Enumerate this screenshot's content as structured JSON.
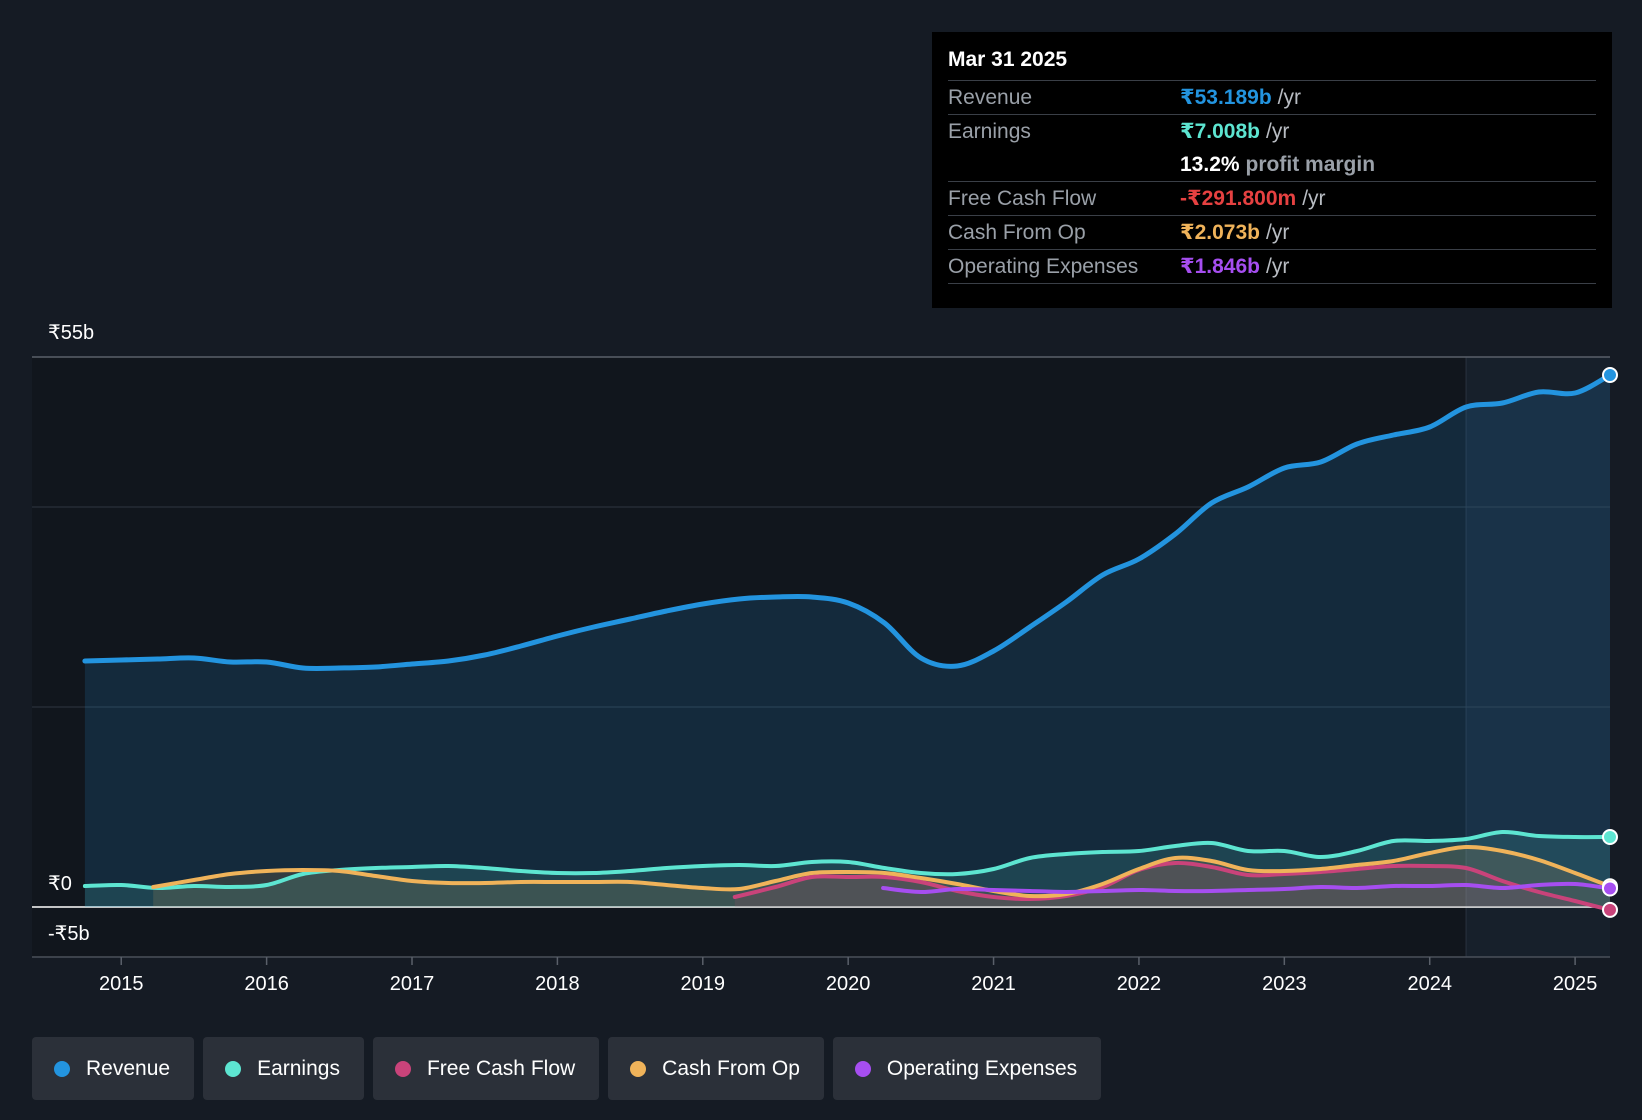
{
  "tooltip": {
    "date": "Mar 31 2025",
    "rows": [
      {
        "label": "Revenue",
        "value": "₹53.189b",
        "suffix": "/yr",
        "color": "#2394df"
      },
      {
        "label": "Earnings",
        "value": "₹7.008b",
        "suffix": "/yr",
        "color": "#5de5d1"
      },
      {
        "label": "",
        "value": "13.2%",
        "suffix": "profit margin",
        "color": "#ffffff"
      },
      {
        "label": "Free Cash Flow",
        "value": "-₹291.800m",
        "suffix": "/yr",
        "color": "#e64141"
      },
      {
        "label": "Cash From Op",
        "value": "₹2.073b",
        "suffix": "/yr",
        "color": "#f0b35a"
      },
      {
        "label": "Operating Expenses",
        "value": "₹1.846b",
        "suffix": "/yr",
        "color": "#a64ef0"
      }
    ]
  },
  "legend": [
    {
      "label": "Revenue",
      "color": "#2394df"
    },
    {
      "label": "Earnings",
      "color": "#5de5d1"
    },
    {
      "label": "Free Cash Flow",
      "color": "#c9437a"
    },
    {
      "label": "Cash From Op",
      "color": "#f0b35a"
    },
    {
      "label": "Operating Expenses",
      "color": "#a64ef0"
    }
  ],
  "chart_data": {
    "type": "line",
    "title": "",
    "xlabel": "",
    "ylabel": "",
    "ylim": [
      -5,
      55
    ],
    "xlim": [
      2014.4,
      2025.24
    ],
    "y_tick_labels": {
      "top": "₹55b",
      "zero": "₹0",
      "bottom": "-₹5b"
    },
    "x_ticks": [
      2015,
      2016,
      2017,
      2018,
      2019,
      2020,
      2021,
      2022,
      2023,
      2024,
      2025
    ],
    "x_tick_labels": [
      "2015",
      "2016",
      "2017",
      "2018",
      "2019",
      "2020",
      "2021",
      "2022",
      "2023",
      "2024",
      "2025"
    ],
    "forecast_start": 2024.25,
    "series": [
      {
        "name": "Revenue",
        "color": "#2394df",
        "area": true,
        "points": [
          [
            2014.75,
            24.6
          ],
          [
            2015,
            24.7
          ],
          [
            2015.25,
            24.8
          ],
          [
            2015.5,
            24.9
          ],
          [
            2015.75,
            24.5
          ],
          [
            2016,
            24.5
          ],
          [
            2016.25,
            23.9
          ],
          [
            2016.5,
            23.9
          ],
          [
            2016.75,
            24.0
          ],
          [
            2017,
            24.3
          ],
          [
            2017.25,
            24.6
          ],
          [
            2017.5,
            25.2
          ],
          [
            2017.75,
            26.1
          ],
          [
            2018,
            27.1
          ],
          [
            2018.25,
            28.0
          ],
          [
            2018.5,
            28.8
          ],
          [
            2018.75,
            29.6
          ],
          [
            2019,
            30.3
          ],
          [
            2019.25,
            30.8
          ],
          [
            2019.5,
            31.0
          ],
          [
            2019.75,
            31.0
          ],
          [
            2020,
            30.4
          ],
          [
            2020.25,
            28.4
          ],
          [
            2020.5,
            24.9
          ],
          [
            2020.75,
            24.1
          ],
          [
            2021,
            25.6
          ],
          [
            2021.25,
            28.0
          ],
          [
            2021.5,
            30.5
          ],
          [
            2021.75,
            33.2
          ],
          [
            2022,
            34.8
          ],
          [
            2022.25,
            37.3
          ],
          [
            2022.5,
            40.4
          ],
          [
            2022.75,
            42.0
          ],
          [
            2023,
            43.9
          ],
          [
            2023.25,
            44.5
          ],
          [
            2023.5,
            46.3
          ],
          [
            2023.75,
            47.2
          ],
          [
            2024,
            48.0
          ],
          [
            2024.25,
            50.0
          ],
          [
            2024.5,
            50.4
          ],
          [
            2024.75,
            51.5
          ],
          [
            2025,
            51.4
          ],
          [
            2025.24,
            53.2
          ]
        ]
      },
      {
        "name": "Earnings",
        "color": "#5de5d1",
        "area": true,
        "points": [
          [
            2014.75,
            2.1
          ],
          [
            2015,
            2.2
          ],
          [
            2015.25,
            1.9
          ],
          [
            2015.5,
            2.1
          ],
          [
            2015.75,
            2.0
          ],
          [
            2016,
            2.2
          ],
          [
            2016.25,
            3.3
          ],
          [
            2016.5,
            3.7
          ],
          [
            2016.75,
            3.9
          ],
          [
            2017,
            4.0
          ],
          [
            2017.25,
            4.1
          ],
          [
            2017.5,
            3.9
          ],
          [
            2017.75,
            3.6
          ],
          [
            2018,
            3.4
          ],
          [
            2018.25,
            3.4
          ],
          [
            2018.5,
            3.6
          ],
          [
            2018.75,
            3.9
          ],
          [
            2019,
            4.1
          ],
          [
            2019.25,
            4.2
          ],
          [
            2019.5,
            4.1
          ],
          [
            2019.75,
            4.5
          ],
          [
            2020,
            4.5
          ],
          [
            2020.25,
            3.9
          ],
          [
            2020.5,
            3.4
          ],
          [
            2020.75,
            3.3
          ],
          [
            2021,
            3.8
          ],
          [
            2021.25,
            4.9
          ],
          [
            2021.5,
            5.3
          ],
          [
            2021.75,
            5.5
          ],
          [
            2022,
            5.6
          ],
          [
            2022.25,
            6.1
          ],
          [
            2022.5,
            6.4
          ],
          [
            2022.75,
            5.6
          ],
          [
            2023,
            5.6
          ],
          [
            2023.25,
            5.0
          ],
          [
            2023.5,
            5.6
          ],
          [
            2023.75,
            6.6
          ],
          [
            2024,
            6.6
          ],
          [
            2024.25,
            6.8
          ],
          [
            2024.5,
            7.5
          ],
          [
            2024.75,
            7.1
          ],
          [
            2025,
            7.0
          ],
          [
            2025.24,
            7.0
          ]
        ]
      },
      {
        "name": "Free Cash Flow",
        "color": "#c9437a",
        "area": true,
        "points": [
          [
            2019.22,
            1.0
          ],
          [
            2019.5,
            2.0
          ],
          [
            2019.75,
            3.0
          ],
          [
            2020,
            3.0
          ],
          [
            2020.25,
            3.0
          ],
          [
            2020.5,
            2.5
          ],
          [
            2020.75,
            1.6
          ],
          [
            2021,
            1.0
          ],
          [
            2021.25,
            0.8
          ],
          [
            2021.5,
            1.1
          ],
          [
            2021.75,
            2.0
          ],
          [
            2022,
            3.7
          ],
          [
            2022.25,
            4.4
          ],
          [
            2022.5,
            4.0
          ],
          [
            2022.75,
            3.2
          ],
          [
            2023,
            3.3
          ],
          [
            2023.25,
            3.5
          ],
          [
            2023.5,
            3.8
          ],
          [
            2023.75,
            4.1
          ],
          [
            2024,
            4.1
          ],
          [
            2024.25,
            3.9
          ],
          [
            2024.5,
            2.6
          ],
          [
            2024.75,
            1.5
          ],
          [
            2025,
            0.6
          ],
          [
            2025.24,
            -0.29
          ]
        ]
      },
      {
        "name": "Cash From Op",
        "color": "#f0b35a",
        "area": true,
        "points": [
          [
            2015.22,
            2.0
          ],
          [
            2015.5,
            2.7
          ],
          [
            2015.75,
            3.3
          ],
          [
            2016,
            3.6
          ],
          [
            2016.25,
            3.7
          ],
          [
            2016.5,
            3.6
          ],
          [
            2016.75,
            3.1
          ],
          [
            2017,
            2.6
          ],
          [
            2017.25,
            2.4
          ],
          [
            2017.5,
            2.4
          ],
          [
            2017.75,
            2.5
          ],
          [
            2018,
            2.5
          ],
          [
            2018.25,
            2.5
          ],
          [
            2018.5,
            2.5
          ],
          [
            2018.75,
            2.2
          ],
          [
            2019,
            1.9
          ],
          [
            2019.25,
            1.8
          ],
          [
            2019.5,
            2.6
          ],
          [
            2019.75,
            3.4
          ],
          [
            2020,
            3.5
          ],
          [
            2020.25,
            3.4
          ],
          [
            2020.5,
            2.9
          ],
          [
            2020.75,
            2.3
          ],
          [
            2021,
            1.6
          ],
          [
            2021.25,
            1.1
          ],
          [
            2021.5,
            1.3
          ],
          [
            2021.75,
            2.3
          ],
          [
            2022,
            3.8
          ],
          [
            2022.25,
            4.9
          ],
          [
            2022.5,
            4.6
          ],
          [
            2022.75,
            3.7
          ],
          [
            2023,
            3.6
          ],
          [
            2023.25,
            3.8
          ],
          [
            2023.5,
            4.2
          ],
          [
            2023.75,
            4.6
          ],
          [
            2024,
            5.4
          ],
          [
            2024.25,
            6.0
          ],
          [
            2024.5,
            5.6
          ],
          [
            2024.75,
            4.7
          ],
          [
            2025,
            3.4
          ],
          [
            2025.24,
            2.07
          ]
        ]
      },
      {
        "name": "Operating Expenses",
        "color": "#a64ef0",
        "area": false,
        "points": [
          [
            2020.24,
            1.9
          ],
          [
            2020.5,
            1.5
          ],
          [
            2020.75,
            1.8
          ],
          [
            2021,
            1.7
          ],
          [
            2021.25,
            1.6
          ],
          [
            2021.5,
            1.5
          ],
          [
            2021.75,
            1.6
          ],
          [
            2022,
            1.7
          ],
          [
            2022.25,
            1.6
          ],
          [
            2022.5,
            1.6
          ],
          [
            2022.75,
            1.7
          ],
          [
            2023,
            1.8
          ],
          [
            2023.25,
            2.0
          ],
          [
            2023.5,
            1.9
          ],
          [
            2023.75,
            2.1
          ],
          [
            2024,
            2.1
          ],
          [
            2024.25,
            2.2
          ],
          [
            2024.5,
            1.9
          ],
          [
            2024.75,
            2.2
          ],
          [
            2025,
            2.3
          ],
          [
            2025.24,
            1.85
          ]
        ]
      }
    ]
  }
}
